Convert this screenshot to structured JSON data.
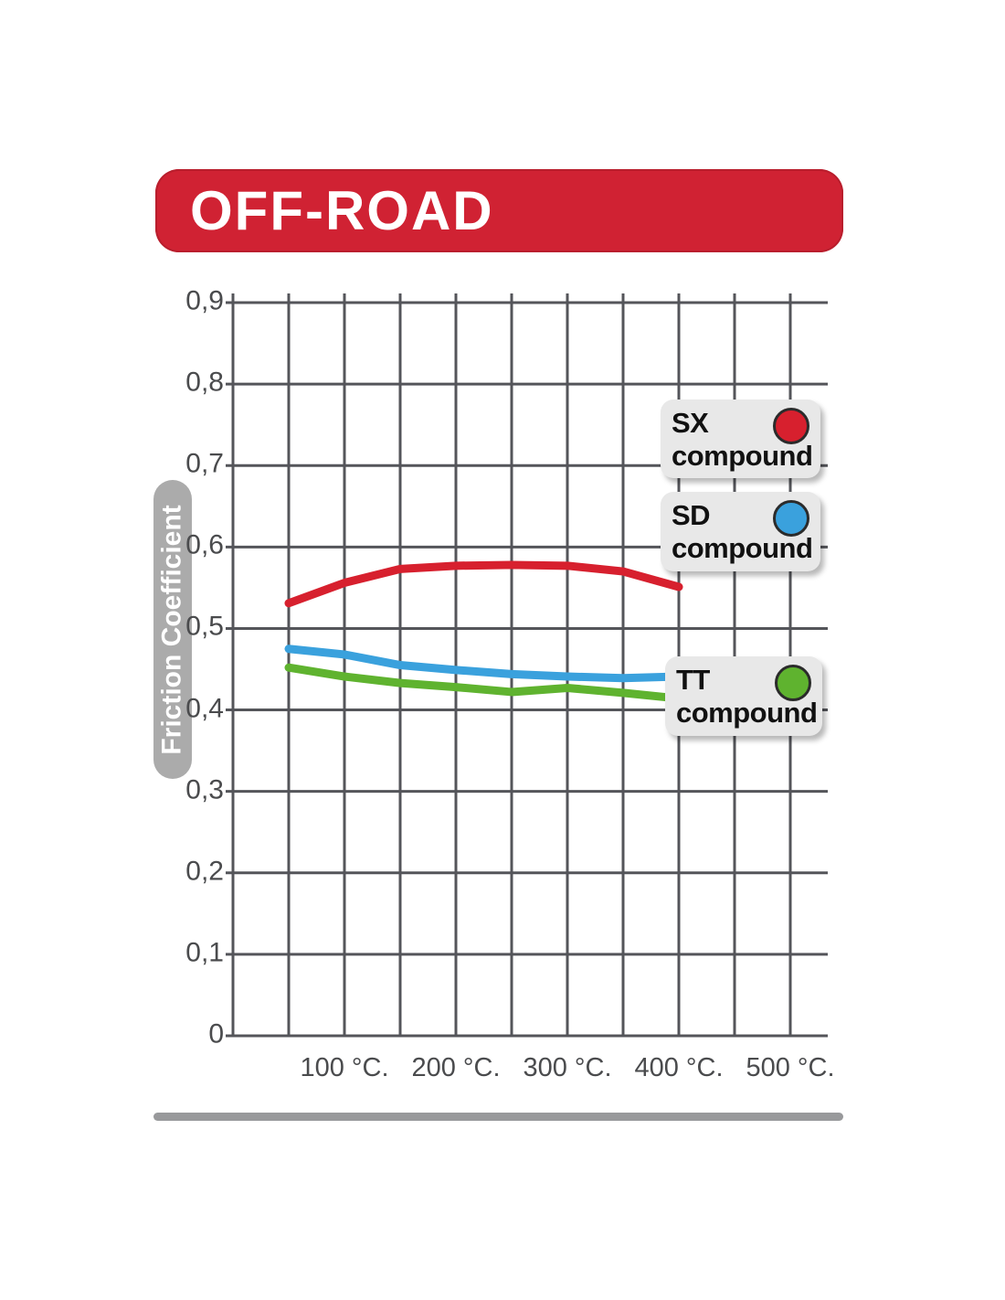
{
  "banner": {
    "title": "OFF-ROAD",
    "color": "#d02233"
  },
  "chart_data": {
    "type": "line",
    "title": "OFF-ROAD",
    "ylabel": "Friction Coefficient",
    "xlabel": "",
    "xlim": [
      0,
      500
    ],
    "ylim": [
      0,
      0.9
    ],
    "x_grid_step": 50,
    "y_grid_step": 0.1,
    "grid": true,
    "legend_position": "right-overlay",
    "grid_color": "#54555a",
    "x": [
      50,
      100,
      150,
      200,
      250,
      300,
      350,
      400
    ],
    "series": [
      {
        "name": "SX compound",
        "color": "#d7202e",
        "values": [
          0.531,
          0.556,
          0.573,
          0.577,
          0.578,
          0.577,
          0.57,
          0.551
        ]
      },
      {
        "name": "SD compound",
        "color": "#3aa1dd",
        "values": [
          0.475,
          0.468,
          0.455,
          0.449,
          0.444,
          0.441,
          0.439,
          0.441
        ]
      },
      {
        "name": "TT compound",
        "color": "#5fb32f",
        "values": [
          0.452,
          0.441,
          0.433,
          0.428,
          0.422,
          0.427,
          0.421,
          0.414
        ]
      }
    ],
    "x_ticks": [
      {
        "t": 100,
        "label": "100 °C."
      },
      {
        "t": 200,
        "label": "200 °C."
      },
      {
        "t": 300,
        "label": "300 °C."
      },
      {
        "t": 400,
        "label": "400 °C."
      },
      {
        "t": 500,
        "label": "500 °C."
      }
    ],
    "y_ticks": [
      {
        "v": 0.0,
        "label": "0"
      },
      {
        "v": 0.1,
        "label": "0,1"
      },
      {
        "v": 0.2,
        "label": "0,2"
      },
      {
        "v": 0.3,
        "label": "0,3"
      },
      {
        "v": 0.4,
        "label": "0,4"
      },
      {
        "v": 0.5,
        "label": "0,5"
      },
      {
        "v": 0.6,
        "label": "0,6"
      },
      {
        "v": 0.7,
        "label": "0,7"
      },
      {
        "v": 0.8,
        "label": "0,8"
      },
      {
        "v": 0.9,
        "label": "0,9"
      }
    ],
    "legend": [
      {
        "code": "SX",
        "word": "compound",
        "color": "#d7202e"
      },
      {
        "code": "SD",
        "word": "compound",
        "color": "#3aa1dd"
      },
      {
        "code": "TT",
        "word": "compound",
        "color": "#5fb32f"
      }
    ]
  }
}
